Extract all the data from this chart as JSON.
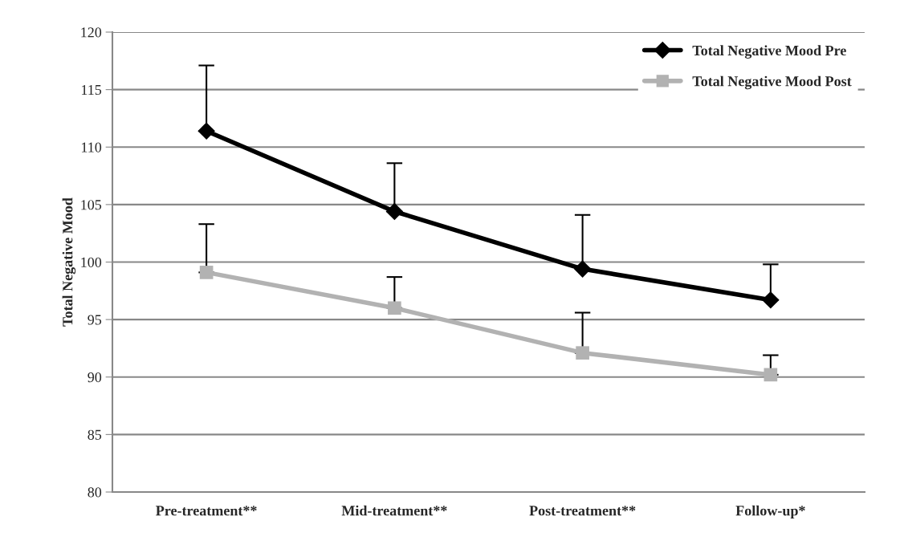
{
  "chart_data": {
    "type": "line",
    "ylabel": "Total Negative Mood",
    "categories": [
      "Pre-treatment**",
      "Mid-treatment**",
      "Post-treatment**",
      "Follow-up*"
    ],
    "series": [
      {
        "name": "Total Negative Mood Pre",
        "color": "#000000",
        "marker": "diamond",
        "values": [
          111.4,
          104.4,
          99.4,
          96.7
        ],
        "errors": [
          [
            111.4,
            117.1
          ],
          [
            104.4,
            108.6
          ],
          [
            99.4,
            104.1
          ],
          [
            96.7,
            99.8
          ]
        ]
      },
      {
        "name": "Total Negative Mood Post",
        "color": "#b2b2b2",
        "marker": "square",
        "values": [
          99.1,
          96.0,
          92.1,
          90.2
        ],
        "errors": [
          [
            99.1,
            103.3
          ],
          [
            96.0,
            98.7
          ],
          [
            92.1,
            95.6
          ],
          [
            90.2,
            91.9
          ]
        ]
      }
    ],
    "ylim": [
      80,
      120
    ],
    "yticks": [
      80,
      85,
      90,
      95,
      100,
      105,
      110,
      115,
      120
    ],
    "grid": "y",
    "legend": "top right",
    "line_style": "solid"
  }
}
